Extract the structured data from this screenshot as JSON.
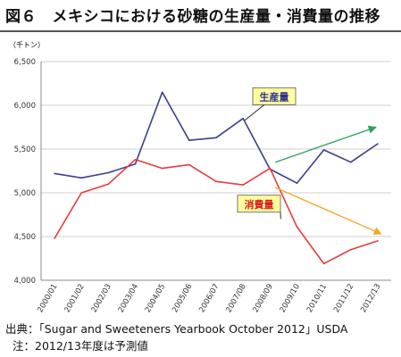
{
  "header": {
    "title": "図６　メキシコにおける砂糖の生産量・消費量の推移"
  },
  "footer": {
    "source": "出典：「Sugar and Sweeteners Yearbook October 2012」USDA",
    "note": "注：2012/13年度は予測値"
  },
  "chart_data": {
    "type": "line",
    "unit_label": "（千トン）",
    "categories": [
      "2000/01",
      "2001/02",
      "2002/03",
      "2003/04",
      "2004/05",
      "2005/06",
      "2006/07",
      "2007/08",
      "2008/09",
      "2009/10",
      "2010/11",
      "2011/12",
      "2012/13"
    ],
    "ylim": [
      4000,
      6500
    ],
    "yticks": [
      "6,500",
      "6,000",
      "5,500",
      "5,000",
      "4,500",
      "4,000"
    ],
    "ytick_values": [
      6500,
      6000,
      5500,
      5000,
      4500,
      4000
    ],
    "grid": true,
    "series": [
      {
        "name": "生産量",
        "color": "#3b3f8f",
        "values": [
          5220,
          5170,
          5230,
          5330,
          6150,
          5600,
          5630,
          5850,
          5270,
          5110,
          5490,
          5350,
          5560
        ]
      },
      {
        "name": "消費量",
        "color": "#e83b3b",
        "values": [
          4480,
          5000,
          5100,
          5380,
          5280,
          5320,
          5130,
          5090,
          5280,
          4610,
          4190,
          4350,
          4450
        ]
      }
    ],
    "callouts": [
      {
        "label": "生産量",
        "box_color": "#ffffa0",
        "text_color": "#2b2f8f"
      },
      {
        "label": "消費量",
        "box_color": "#ffffa0",
        "text_color": "#d92020"
      }
    ],
    "trend_arrows": [
      {
        "color": "#2e9e5b"
      },
      {
        "color": "#f5a623"
      }
    ]
  }
}
